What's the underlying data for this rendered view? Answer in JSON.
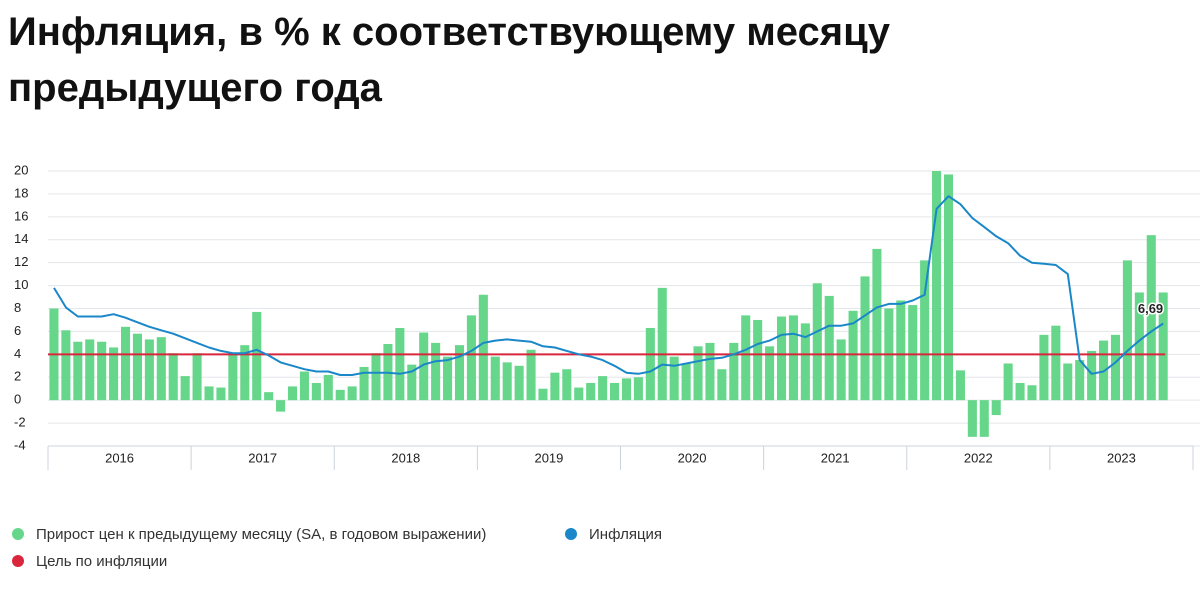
{
  "chart_data": {
    "type": "bar",
    "title": "Инфляция, в % к соответствующему месяцу предыдущего года",
    "categories": [
      "2016",
      null,
      null,
      null,
      null,
      null,
      null,
      null,
      null,
      null,
      null,
      null,
      "2017",
      null,
      null,
      null,
      null,
      null,
      null,
      null,
      null,
      null,
      null,
      null,
      "2018",
      null,
      null,
      null,
      null,
      null,
      null,
      null,
      null,
      null,
      null,
      null,
      "2019",
      null,
      null,
      null,
      null,
      null,
      null,
      null,
      null,
      null,
      null,
      null,
      "2020",
      null,
      null,
      null,
      null,
      null,
      null,
      null,
      null,
      null,
      null,
      null,
      "2021",
      null,
      null,
      null,
      null,
      null,
      null,
      null,
      null,
      null,
      null,
      null,
      "2022",
      null,
      null,
      null,
      null,
      null,
      null,
      null,
      null,
      null,
      null,
      null,
      "2023",
      null,
      null,
      null,
      null,
      null,
      null,
      null,
      null,
      null
    ],
    "series": [
      {
        "name": "Прирост цен к предыдущему месяцу (SA, в годовом выражении)",
        "type": "bar",
        "color": "#66d68a",
        "values": [
          8.0,
          6.1,
          5.1,
          5.3,
          5.1,
          4.6,
          6.4,
          5.8,
          5.3,
          5.5,
          4.1,
          2.1,
          4.1,
          1.2,
          1.1,
          4.1,
          4.8,
          7.7,
          0.7,
          -1.0,
          1.2,
          2.5,
          1.5,
          2.2,
          0.9,
          1.2,
          2.9,
          4.1,
          4.9,
          6.3,
          3.1,
          5.9,
          5.0,
          3.8,
          4.8,
          7.4,
          9.2,
          3.8,
          3.3,
          3.0,
          4.4,
          1.0,
          2.4,
          2.7,
          1.1,
          1.5,
          2.1,
          1.5,
          1.9,
          2.0,
          6.3,
          9.8,
          3.8,
          3.2,
          4.7,
          5.0,
          2.7,
          5.0,
          7.4,
          7.0,
          4.7,
          7.3,
          7.4,
          6.7,
          10.2,
          9.1,
          5.3,
          7.8,
          10.8,
          13.2,
          8.0,
          8.7,
          8.3,
          12.2,
          20.0,
          19.7,
          2.6,
          -3.2,
          -3.2,
          -1.3,
          3.2,
          1.5,
          1.3,
          5.7,
          6.5,
          3.2,
          3.5,
          4.3,
          5.2,
          5.7,
          12.2,
          9.4,
          14.4,
          9.4
        ]
      },
      {
        "name": "Инфляция",
        "type": "line",
        "color": "#1a87c9",
        "values": [
          9.8,
          8.1,
          7.3,
          7.3,
          7.3,
          7.5,
          7.2,
          6.8,
          6.4,
          6.1,
          5.8,
          5.4,
          5.0,
          4.6,
          4.3,
          4.1,
          4.1,
          4.4,
          3.9,
          3.3,
          3.0,
          2.7,
          2.5,
          2.5,
          2.2,
          2.2,
          2.4,
          2.4,
          2.4,
          2.3,
          2.5,
          3.1,
          3.4,
          3.5,
          3.8,
          4.3,
          5.0,
          5.2,
          5.3,
          5.2,
          5.1,
          4.7,
          4.6,
          4.3,
          4.0,
          3.8,
          3.5,
          3.0,
          2.4,
          2.3,
          2.5,
          3.1,
          3.0,
          3.2,
          3.4,
          3.6,
          3.7,
          4.0,
          4.4,
          4.9,
          5.2,
          5.7,
          5.8,
          5.5,
          6.0,
          6.5,
          6.5,
          6.7,
          7.4,
          8.1,
          8.4,
          8.4,
          8.7,
          9.2,
          16.7,
          17.8,
          17.1,
          15.9,
          15.1,
          14.3,
          13.7,
          12.6,
          12.0,
          11.9,
          11.8,
          11.0,
          3.5,
          2.3,
          2.5,
          3.3,
          4.3,
          5.2,
          6.0,
          6.69
        ],
        "value_labels": [
          null,
          null,
          null,
          null,
          null,
          null,
          null,
          null,
          null,
          null,
          null,
          null,
          null,
          null,
          null,
          null,
          null,
          null,
          null,
          null,
          null,
          null,
          null,
          null,
          null,
          null,
          null,
          null,
          null,
          null,
          null,
          null,
          null,
          null,
          null,
          null,
          null,
          null,
          null,
          null,
          null,
          null,
          null,
          null,
          null,
          null,
          null,
          null,
          null,
          null,
          null,
          null,
          null,
          null,
          null,
          null,
          null,
          null,
          null,
          null,
          null,
          null,
          null,
          null,
          null,
          null,
          null,
          null,
          null,
          null,
          null,
          null,
          null,
          null,
          null,
          null,
          null,
          null,
          null,
          null,
          null,
          null,
          null,
          null,
          null,
          null,
          null,
          null,
          null,
          null,
          null,
          null,
          null,
          "6,69"
        ]
      }
    ],
    "target_line": {
      "name": "Цель по инфляции",
      "color": "#d9263c",
      "value": 4
    },
    "ylim": [
      -4,
      20
    ],
    "yticks": [
      -4,
      -2,
      0,
      2,
      4,
      6,
      8,
      10,
      12,
      14,
      16,
      18,
      20
    ],
    "grid": true,
    "legend": "bottom-left"
  }
}
